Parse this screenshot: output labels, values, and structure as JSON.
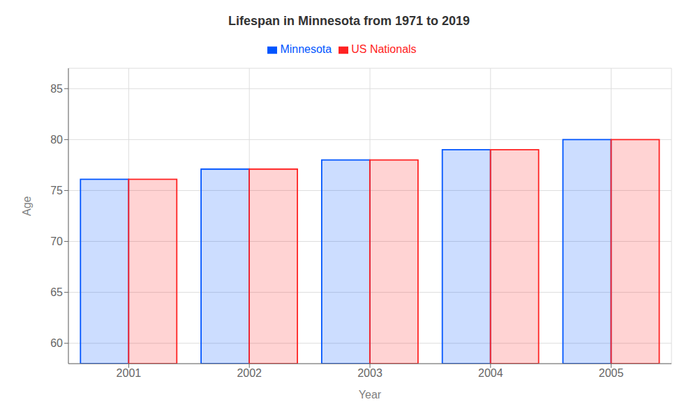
{
  "chart_data": {
    "type": "bar",
    "title": "Lifespan in Minnesota from 1971 to 2019",
    "xlabel": "Year",
    "ylabel": "Age",
    "categories": [
      "2001",
      "2002",
      "2003",
      "2004",
      "2005"
    ],
    "series": [
      {
        "name": "Minnesota",
        "color": "#0055ff",
        "values": [
          76.1,
          77.1,
          78.0,
          79.0,
          80.0
        ]
      },
      {
        "name": "US Nationals",
        "color": "#ff2222",
        "values": [
          76.1,
          77.1,
          78.0,
          79.0,
          80.0
        ]
      }
    ],
    "ylim": [
      58,
      87
    ],
    "yticks": [
      60,
      65,
      70,
      75,
      80,
      85
    ],
    "grid": true,
    "legend": "top"
  }
}
